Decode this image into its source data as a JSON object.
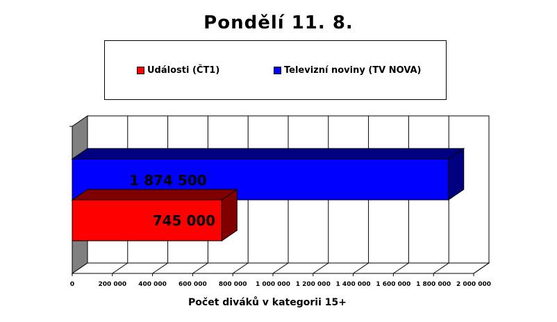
{
  "chart_data": {
    "type": "bar",
    "orientation": "horizontal",
    "title": "Pondělí 11. 8.",
    "xlabel": "Počet diváků v kategorii 15+",
    "ylabel": "",
    "xlim": [
      0,
      2000000
    ],
    "x_ticks": [
      0,
      200000,
      400000,
      600000,
      800000,
      1000000,
      1200000,
      1400000,
      1600000,
      1800000,
      2000000
    ],
    "x_tick_labels": [
      "0",
      "200 000",
      "400 000",
      "600 000",
      "800 000",
      "1 000 000",
      "1 200 000",
      "1 400 000",
      "1 600 000",
      "1 800 000",
      "2 000 000"
    ],
    "grid": true,
    "three_d": true,
    "legend_position": "top",
    "series": [
      {
        "name": "Události (ČT1)",
        "value": 745000,
        "data_label": "745 000",
        "color": "#ff0000",
        "side_color": "#800000"
      },
      {
        "name": "Televizní noviny (TV NOVA)",
        "value": 1874500,
        "data_label": "1 874 500",
        "color": "#0000ff",
        "side_color": "#000080"
      }
    ]
  }
}
